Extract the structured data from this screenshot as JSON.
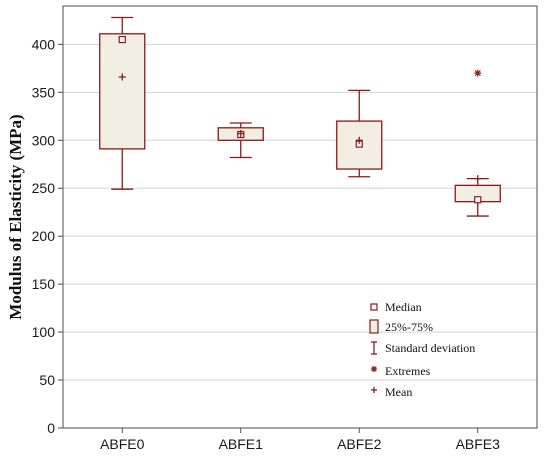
{
  "chart_data": {
    "type": "box",
    "title": "",
    "xlabel": "",
    "ylabel": "Modulus of Elasticity (MPa)",
    "ylim": [
      0,
      440
    ],
    "yticks": [
      0,
      50,
      100,
      150,
      200,
      250,
      300,
      350,
      400
    ],
    "grid": true,
    "legend_position": "lower-right",
    "box_color": "#8b1a1a",
    "box_fill": "#f2efe2",
    "categories": [
      "ABFE0",
      "ABFE1",
      "ABFE2",
      "ABFE3"
    ],
    "groups": [
      {
        "category": "ABFE0",
        "median": 405,
        "q1": 291,
        "q3": 411,
        "whisker_low": 249,
        "whisker_high": 428,
        "mean": 366,
        "extremes": []
      },
      {
        "category": "ABFE1",
        "median": 306,
        "q1": 300,
        "q3": 313,
        "whisker_low": 282,
        "whisker_high": 318,
        "mean": 307,
        "extremes": []
      },
      {
        "category": "ABFE2",
        "median": 296,
        "q1": 270,
        "q3": 320,
        "whisker_low": 262,
        "whisker_high": 352,
        "mean": 300,
        "extremes": []
      },
      {
        "category": "ABFE3",
        "median": 238,
        "q1": 236,
        "q3": 253,
        "whisker_low": 221,
        "whisker_high": 260,
        "mean": 260,
        "extremes": [
          370
        ]
      }
    ],
    "legend": [
      {
        "key": "median",
        "label": "Median"
      },
      {
        "key": "box",
        "label": "25%-75%"
      },
      {
        "key": "whisker",
        "label": "Standard deviation"
      },
      {
        "key": "extreme",
        "label": "Extremes"
      },
      {
        "key": "mean",
        "label": "Mean"
      }
    ]
  }
}
